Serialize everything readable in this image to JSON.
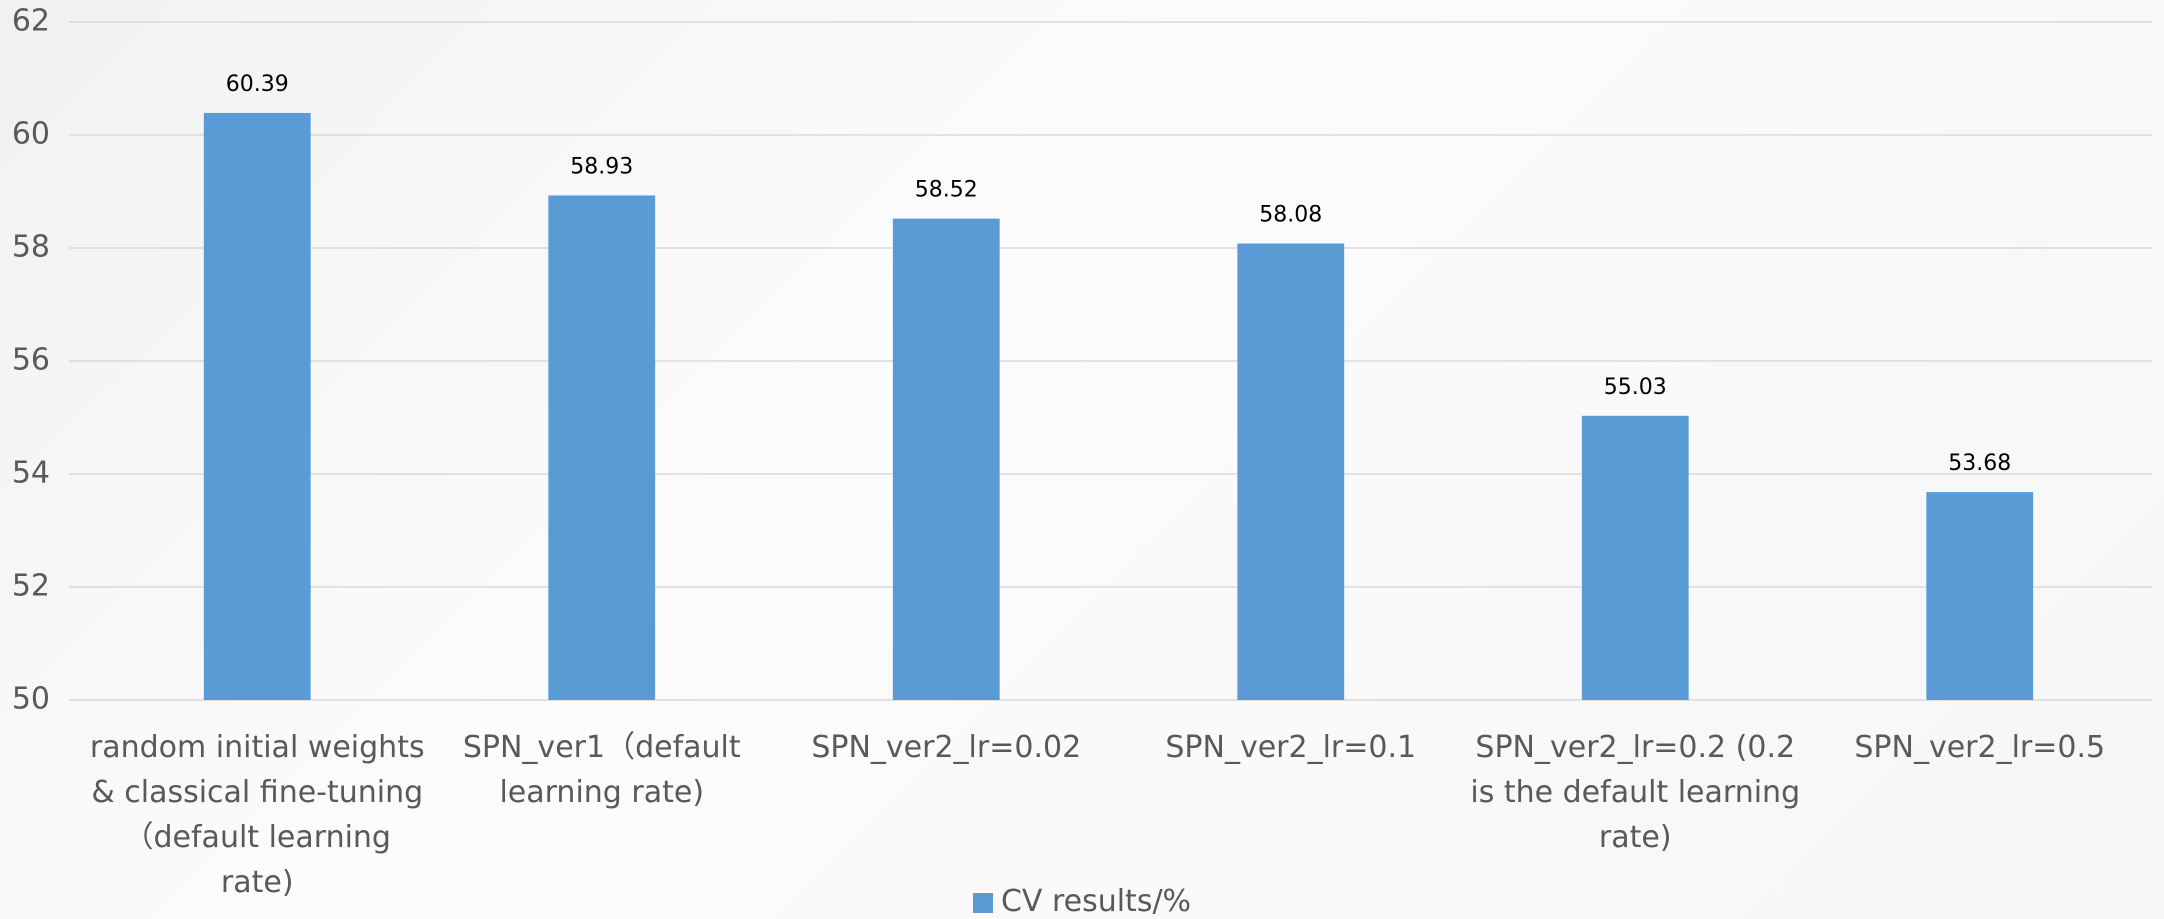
{
  "chart_data": {
    "type": "bar",
    "categories": [
      "random initial weights & classical fine-tuning（default learning rate)",
      "SPN_ver1（default learning rate)",
      "SPN_ver2_lr=0.02",
      "SPN_ver2_lr=0.1",
      "SPN_ver2_lr=0.2 (0.2 is the default learning rate)",
      "SPN_ver2_lr=0.5"
    ],
    "series": [
      {
        "name": "CV results/%",
        "color": "#5b9bd5",
        "values": [
          60.39,
          58.93,
          58.52,
          58.08,
          55.03,
          53.68
        ]
      }
    ],
    "ylim": [
      50,
      62
    ],
    "yticks": [
      50,
      52,
      54,
      56,
      58,
      60,
      62
    ],
    "grid": true,
    "legend": "bottom"
  }
}
